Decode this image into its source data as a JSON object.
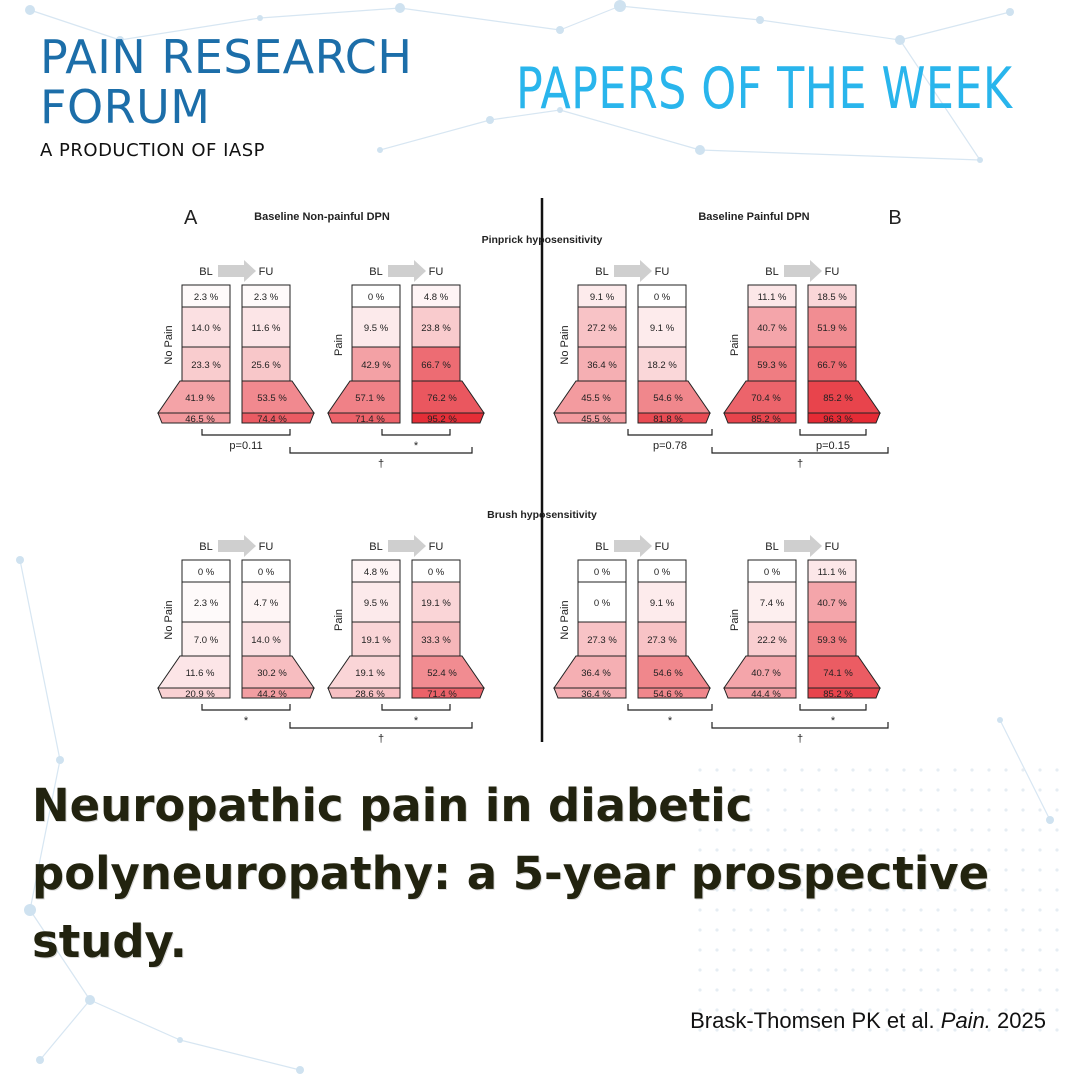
{
  "brand": {
    "line1": "PAIN RESEARCH",
    "line2": "FORUM",
    "sub": "A PRODUCTION OF IASP"
  },
  "header_right": "PAPERS OF THE WEEK",
  "colors": {
    "brand_blue": "#1c6ea9",
    "accent_cyan": "#29b5ec",
    "headline": "#22230f"
  },
  "figure": {
    "panel_a": {
      "letter": "A",
      "title": "Baseline Non-painful DPN"
    },
    "panel_b": {
      "letter": "B",
      "title": "Baseline Painful DPN"
    },
    "rows": [
      {
        "title": "Pinprick hyposensitivity",
        "groups": [
          {
            "label": "No Pain",
            "bl": [
              "2.3 %",
              "14.0 %",
              "23.3 %",
              "41.9 %",
              "46.5 %"
            ],
            "fu": [
              "2.3 %",
              "11.6 %",
              "25.6 %",
              "53.5 %",
              "74.4 %"
            ]
          },
          {
            "label": "Pain",
            "bl": [
              "0 %",
              "9.5 %",
              "42.9 %",
              "57.1 %",
              "71.4 %"
            ],
            "fu": [
              "4.8 %",
              "23.8 %",
              "66.7 %",
              "76.2 %",
              "95.2 %"
            ]
          },
          {
            "label": "No Pain",
            "bl": [
              "9.1 %",
              "27.2 %",
              "36.4 %",
              "45.5 %",
              "45.5 %"
            ],
            "fu": [
              "0 %",
              "9.1 %",
              "18.2 %",
              "54.6 %",
              "81.8 %"
            ]
          },
          {
            "label": "Pain",
            "bl": [
              "11.1 %",
              "40.7 %",
              "59.3 %",
              "70.4 %",
              "85.2 %"
            ],
            "fu": [
              "18.5 %",
              "51.9 %",
              "66.7 %",
              "85.2 %",
              "96.3 %"
            ]
          }
        ],
        "stats": {
          "a_inner": "p=0.11",
          "a_right": "*",
          "a_outer": "†",
          "b_inner": "p=0.78",
          "b_right": "p=0.15",
          "b_outer": "†"
        }
      },
      {
        "title": "Brush hyposensitivity",
        "groups": [
          {
            "label": "No Pain",
            "bl": [
              "0 %",
              "2.3 %",
              "7.0 %",
              "11.6 %",
              "20.9 %"
            ],
            "fu": [
              "0 %",
              "4.7 %",
              "14.0 %",
              "30.2 %",
              "44.2 %"
            ]
          },
          {
            "label": "Pain",
            "bl": [
              "4.8 %",
              "9.5 %",
              "19.1 %",
              "19.1 %",
              "28.6 %"
            ],
            "fu": [
              "0 %",
              "19.1 %",
              "33.3 %",
              "52.4 %",
              "71.4 %"
            ]
          },
          {
            "label": "No Pain",
            "bl": [
              "0 %",
              "0 %",
              "27.3 %",
              "36.4 %",
              "36.4 %"
            ],
            "fu": [
              "0 %",
              "9.1 %",
              "27.3 %",
              "54.6 %",
              "54.6 %"
            ]
          },
          {
            "label": "Pain",
            "bl": [
              "0 %",
              "7.4 %",
              "22.2 %",
              "40.7 %",
              "44.4 %"
            ],
            "fu": [
              "11.1 %",
              "40.7 %",
              "59.3 %",
              "74.1 %",
              "85.2 %"
            ]
          }
        ],
        "stats": {
          "a_inner": "*",
          "a_right": "*",
          "a_outer": "†",
          "b_inner": "*",
          "b_right": "*",
          "b_outer": "†"
        }
      }
    ],
    "bl_label": "BL",
    "fu_label": "FU"
  },
  "headline": "Neuropathic pain in diabetic polyneuropathy: a 5-year prospective study.",
  "citation": {
    "authors": "Brask-Thomsen PK et al.",
    "journal": "Pain.",
    "year": "2025"
  }
}
